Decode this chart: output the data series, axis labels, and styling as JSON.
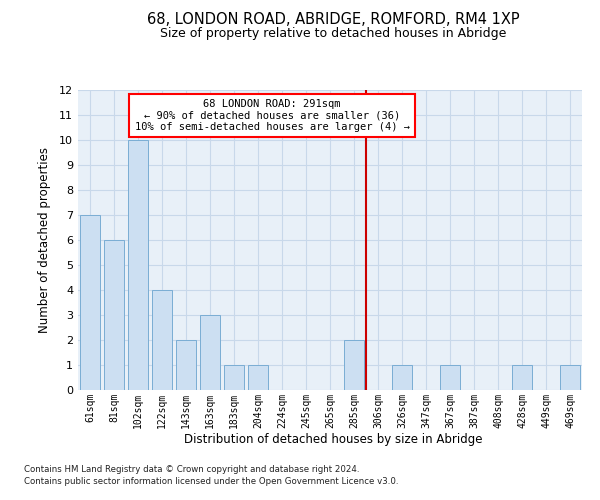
{
  "title": "68, LONDON ROAD, ABRIDGE, ROMFORD, RM4 1XP",
  "subtitle": "Size of property relative to detached houses in Abridge",
  "xlabel": "Distribution of detached houses by size in Abridge",
  "ylabel": "Number of detached properties",
  "categories": [
    "61sqm",
    "81sqm",
    "102sqm",
    "122sqm",
    "143sqm",
    "163sqm",
    "183sqm",
    "204sqm",
    "224sqm",
    "245sqm",
    "265sqm",
    "285sqm",
    "306sqm",
    "326sqm",
    "347sqm",
    "367sqm",
    "387sqm",
    "408sqm",
    "428sqm",
    "449sqm",
    "469sqm"
  ],
  "values": [
    7,
    6,
    10,
    4,
    2,
    3,
    1,
    1,
    0,
    0,
    0,
    2,
    0,
    1,
    0,
    1,
    0,
    0,
    1,
    0,
    1
  ],
  "bar_color": "#ccdff2",
  "bar_edge_color": "#7aadd4",
  "grid_color": "#c8d8ea",
  "background_color": "#e8f0f8",
  "vline_x": 11.5,
  "vline_color": "#cc0000",
  "annotation_title": "68 LONDON ROAD: 291sqm",
  "annotation_line1": "← 90% of detached houses are smaller (36)",
  "annotation_line2": "10% of semi-detached houses are larger (4) →",
  "ylim": [
    0,
    12
  ],
  "yticks": [
    0,
    1,
    2,
    3,
    4,
    5,
    6,
    7,
    8,
    9,
    10,
    11,
    12
  ],
  "footer1": "Contains HM Land Registry data © Crown copyright and database right 2024.",
  "footer2": "Contains public sector information licensed under the Open Government Licence v3.0."
}
